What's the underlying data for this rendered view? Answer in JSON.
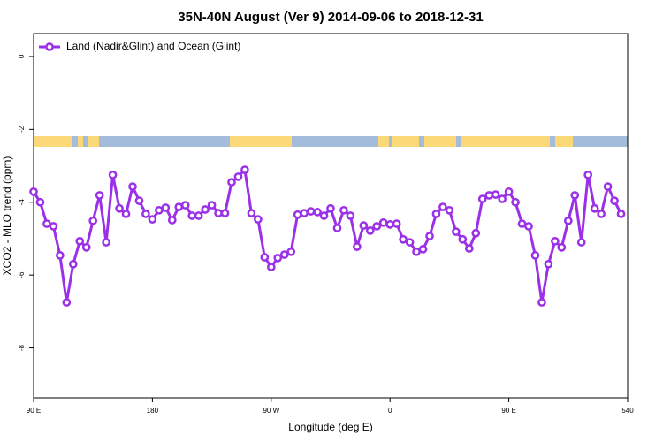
{
  "chart_data": {
    "type": "line",
    "title": "35N-40N August (Ver 9)   2014-09-06 to 2018-12-31",
    "xlabel": "Longitude (deg E)",
    "ylabel": "XCO2 - MLO trend (ppm)",
    "xlim": [
      90,
      540
    ],
    "ylim": [
      -9.37,
      0.63
    ],
    "xticks": [
      {
        "value": 90,
        "label": "90 E"
      },
      180,
      {
        "value": 270,
        "label": "90 W"
      },
      {
        "value": 360,
        "label": "0"
      },
      {
        "value": 450,
        "label": "90 E"
      },
      540
    ],
    "yticks": [
      0,
      -2,
      -4,
      -6,
      -8
    ],
    "legend": "top-left",
    "x": [
      90,
      95,
      100,
      105,
      110,
      115,
      120,
      125,
      130,
      135,
      140,
      145,
      150,
      155,
      160,
      165,
      170,
      175,
      180,
      185,
      190,
      195,
      200,
      205,
      210,
      215,
      220,
      225,
      230,
      235,
      240,
      245,
      250,
      255,
      260,
      265,
      270,
      275,
      280,
      285,
      290,
      295,
      300,
      305,
      310,
      315,
      320,
      325,
      330,
      335,
      340,
      345,
      350,
      355,
      360,
      365,
      370,
      375,
      380,
      385,
      390,
      395,
      400,
      405,
      410,
      415,
      420,
      425,
      430,
      435,
      440,
      445,
      450,
      455,
      460,
      465,
      470,
      475,
      480,
      485,
      490,
      495,
      500,
      505,
      510,
      515,
      520,
      525,
      530,
      535
    ],
    "series": [
      {
        "name": "Land (Nadir&Glint) and Ocean (Glint)",
        "color": "#9b30e8",
        "values": [
          -3.71,
          -4.0,
          -4.59,
          -4.66,
          -5.46,
          -6.75,
          -5.7,
          -5.07,
          -5.24,
          -4.51,
          -3.81,
          -5.1,
          -3.25,
          -4.17,
          -4.32,
          -3.57,
          -3.96,
          -4.32,
          -4.47,
          -4.22,
          -4.15,
          -4.49,
          -4.13,
          -4.08,
          -4.37,
          -4.37,
          -4.2,
          -4.08,
          -4.3,
          -4.3,
          -3.45,
          -3.3,
          -3.11,
          -4.3,
          -4.47,
          -5.51,
          -5.78,
          -5.53,
          -5.44,
          -5.36,
          -4.34,
          -4.3,
          -4.25,
          -4.27,
          -4.37,
          -4.17,
          -4.71,
          -4.22,
          -4.37,
          -5.22,
          -4.64,
          -4.78,
          -4.66,
          -4.56,
          -4.61,
          -4.59,
          -5.02,
          -5.1,
          -5.36,
          -5.29,
          -4.93,
          -4.32,
          -4.13,
          -4.22,
          -4.81,
          -5.02,
          -5.27,
          -4.85,
          -3.91,
          -3.81,
          -3.79,
          -3.91,
          -3.71,
          -4.0,
          -4.59,
          -4.66,
          -5.46,
          -6.75,
          -5.7,
          -5.07,
          -5.24,
          -4.51,
          -3.81,
          -5.1,
          -3.25,
          -4.17,
          -4.32,
          -3.57,
          -3.96,
          -4.32
        ]
      }
    ]
  }
}
